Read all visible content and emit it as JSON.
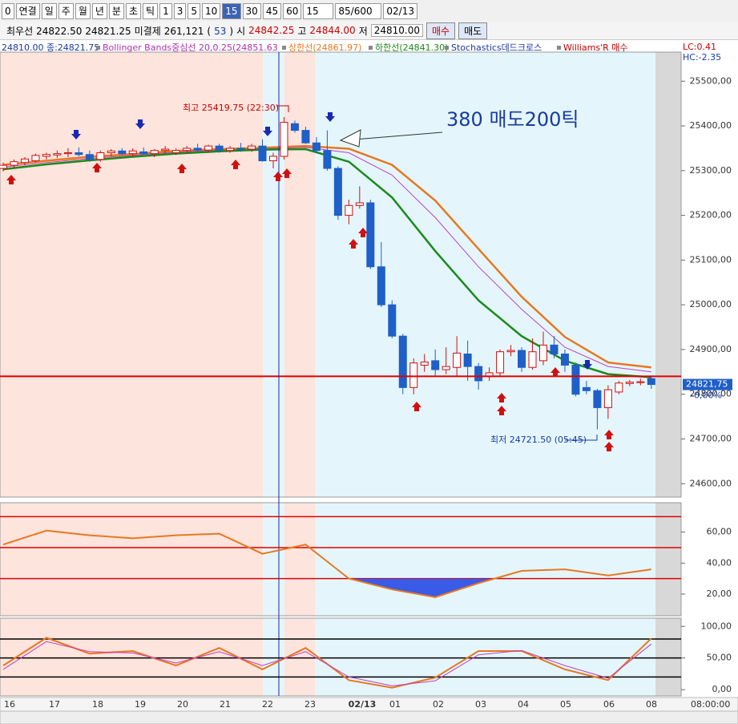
{
  "toolbar": {
    "buttons": [
      "0",
      "연결",
      "일",
      "주",
      "월",
      "년",
      "분",
      "초",
      "틱",
      "1",
      "3",
      "5",
      "10",
      "15",
      "30",
      "45",
      "60"
    ],
    "active": "15",
    "period": "15",
    "count": "85/600",
    "date": "02/13"
  },
  "info": {
    "items": [
      "최우선",
      "24822.50",
      "24821.25",
      "미결제",
      "261,121",
      "(",
      "53",
      ")",
      "시"
    ],
    "open": "24842.25",
    "high_label": "고",
    "high": "24844.00",
    "low_label": "저",
    "low": "24810.00",
    "buy": "매수",
    "sell": "매도"
  },
  "legend": {
    "head": "24810.00 종:24821.75",
    "items": [
      {
        "text": "Bollinger Bands중심선 20,0.25(24851.63",
        "color": "#b030b0"
      },
      {
        "text": "상한선(24861.97)",
        "color": "#e87820"
      },
      {
        "text": "하한선(24841.30)",
        "color": "#1a8a1a"
      },
      {
        "text": "Stochastics데드크로스",
        "color": "#1a3aa0"
      },
      {
        "text": "Williams'R 매수",
        "color": "#c00000"
      }
    ],
    "lc": "LC:0.41",
    "hc": "HC:-2.35"
  },
  "price_chart": {
    "ylim": [
      24570,
      25565
    ],
    "yticks": [
      {
        "value": 25500,
        "label": "25500,00"
      },
      {
        "value": 25400,
        "label": "25400,00"
      },
      {
        "value": 25300,
        "label": "25300,00"
      },
      {
        "value": 25200,
        "label": "25200,00"
      },
      {
        "value": 25100,
        "label": "25100,00"
      },
      {
        "value": 25000,
        "label": "25000,00"
      },
      {
        "value": 24900,
        "label": "24900,00"
      },
      {
        "value": 24800,
        "label": "24800,00"
      },
      {
        "value": 24700,
        "label": "24700,00"
      },
      {
        "value": 24600,
        "label": "24600,00"
      }
    ],
    "candles": [
      [
        25305,
        25318,
        25298,
        25312
      ],
      [
        25312,
        25325,
        25305,
        25320
      ],
      [
        25318,
        25330,
        25312,
        25326
      ],
      [
        25322,
        25338,
        25318,
        25334
      ],
      [
        25332,
        25340,
        25325,
        25336
      ],
      [
        25335,
        25345,
        25328,
        25338
      ],
      [
        25338,
        25350,
        25330,
        25340
      ],
      [
        25340,
        25352,
        25332,
        25336
      ],
      [
        25336,
        25345,
        25320,
        25325
      ],
      [
        25325,
        25345,
        25320,
        25340
      ],
      [
        25340,
        25348,
        25332,
        25344
      ],
      [
        25344,
        25350,
        25335,
        25338
      ],
      [
        25338,
        25350,
        25330,
        25344
      ],
      [
        25342,
        25352,
        25335,
        25338
      ],
      [
        25338,
        25348,
        25330,
        25345
      ],
      [
        25345,
        25355,
        25338,
        25348
      ],
      [
        25340,
        25350,
        25335,
        25345
      ],
      [
        25345,
        25355,
        25338,
        25350
      ],
      [
        25350,
        25360,
        25342,
        25346
      ],
      [
        25346,
        25358,
        25340,
        25355
      ],
      [
        25355,
        25360,
        25340,
        25345
      ],
      [
        25345,
        25355,
        25340,
        25350
      ],
      [
        25350,
        25362,
        25342,
        25348
      ],
      [
        25348,
        25360,
        25342,
        25355
      ],
      [
        25355,
        25370,
        25320,
        25322
      ],
      [
        25322,
        25340,
        25305,
        25332
      ],
      [
        25332,
        25419.75,
        25325,
        25408
      ],
      [
        25405,
        25412,
        25385,
        25390
      ],
      [
        25390,
        25398,
        25360,
        25362
      ],
      [
        25362,
        25375,
        25340,
        25345
      ],
      [
        25345,
        25390,
        25300,
        25305
      ],
      [
        25305,
        25310,
        25190,
        25200
      ],
      [
        25200,
        25235,
        25180,
        25222
      ],
      [
        25222,
        25265,
        25215,
        25228
      ],
      [
        25228,
        25235,
        25080,
        25085
      ],
      [
        25085,
        25140,
        24995,
        25000
      ],
      [
        25000,
        25010,
        24925,
        24930
      ],
      [
        24930,
        24935,
        24800,
        24815
      ],
      [
        24815,
        24880,
        24800,
        24870
      ],
      [
        24865,
        24890,
        24850,
        24872
      ],
      [
        24875,
        24900,
        24840,
        24855
      ],
      [
        24855,
        24905,
        24845,
        24862
      ],
      [
        24860,
        24930,
        24840,
        24892
      ],
      [
        24890,
        24920,
        24830,
        24862
      ],
      [
        24862,
        24870,
        24810,
        24830
      ],
      [
        24840,
        24860,
        24830,
        24848
      ],
      [
        24848,
        24900,
        24840,
        24895
      ],
      [
        24895,
        24910,
        24885,
        24898
      ],
      [
        24898,
        24905,
        24850,
        24860
      ],
      [
        24860,
        24925,
        24855,
        24895
      ],
      [
        24875,
        24940,
        24865,
        24910
      ],
      [
        24910,
        24930,
        24880,
        24890
      ],
      [
        24890,
        24900,
        24850,
        24865
      ],
      [
        24865,
        24870,
        24795,
        24800
      ],
      [
        24815,
        24830,
        24800,
        24808
      ],
      [
        24808,
        24812,
        24721.5,
        24770
      ],
      [
        24770,
        24820,
        24745,
        24810
      ],
      [
        24805,
        24830,
        24800,
        24825
      ],
      [
        24824,
        24832,
        24818,
        24827
      ],
      [
        24826,
        24835,
        24820,
        24828
      ],
      [
        24835,
        24842,
        24812,
        24821.75
      ]
    ],
    "line_x": [
      0,
      4,
      8,
      12,
      16,
      20,
      24,
      28,
      32,
      36,
      40,
      44,
      48,
      52,
      56,
      60
    ],
    "lines": [
      {
        "color": "#e87820",
        "values": [
          25313,
          25322,
          25331,
          25337,
          25344,
          25348,
          25351,
          25355,
          25349,
          25313,
          25233,
          25125,
          25018,
          24928,
          24871,
          24860
        ]
      },
      {
        "color": "#c040c0",
        "values": [
          25308,
          25318,
          25327,
          25334,
          25341,
          25346,
          25349,
          25352,
          25340,
          25290,
          25195,
          25085,
          24990,
          24905,
          24862,
          24850
        ]
      },
      {
        "color": "#1a8a1a",
        "values": [
          25303,
          25314,
          25323,
          25331,
          25338,
          25343,
          25347,
          25348,
          25320,
          25240,
          25120,
          25010,
          24930,
          24875,
          24845,
          24838
        ]
      }
    ],
    "hline": 24840,
    "last_price": {
      "value": 24821.75,
      "label": "24821,75"
    },
    "last_change": "-0,00%",
    "high_note": "최고 25419.75 (22:30)",
    "low_note": "최저 24721.50 (05:45)",
    "comment": "380 매도200틱"
  },
  "oscillator": {
    "ylim": [
      6,
      79
    ],
    "yticks": [
      {
        "value": 60,
        "label": "60,00"
      },
      {
        "value": 40,
        "label": "40,00"
      },
      {
        "value": 20,
        "label": "20,00"
      }
    ],
    "levels": [
      70,
      50,
      30
    ],
    "color": "#e87820",
    "values": [
      52,
      61,
      58,
      56,
      58,
      59,
      46,
      52,
      30,
      23,
      18,
      27,
      35,
      36,
      32,
      36
    ]
  },
  "stochastic": {
    "ylim": [
      -10,
      113
    ],
    "yticks": [
      {
        "value": 100,
        "label": "100,00"
      },
      {
        "value": 50,
        "label": "50,00"
      },
      {
        "value": 0,
        "label": "0,00"
      }
    ],
    "levels": [
      80,
      50,
      20
    ],
    "series": [
      {
        "color": "#e87820",
        "values": [
          38,
          82,
          57,
          61,
          38,
          66,
          32,
          66,
          15,
          3,
          19,
          61,
          61,
          32,
          15,
          81
        ]
      },
      {
        "color": "#c040c0",
        "values": [
          32,
          76,
          60,
          58,
          42,
          60,
          38,
          60,
          20,
          6,
          14,
          55,
          62,
          38,
          18,
          72
        ]
      }
    ]
  },
  "time_axis": {
    "labels": [
      "16",
      "17",
      "18",
      "19",
      "20",
      "21",
      "22",
      "23",
      "02/13",
      "01",
      "02",
      "03",
      "04",
      "05",
      "06",
      "08"
    ],
    "clock": "08:00:00"
  }
}
